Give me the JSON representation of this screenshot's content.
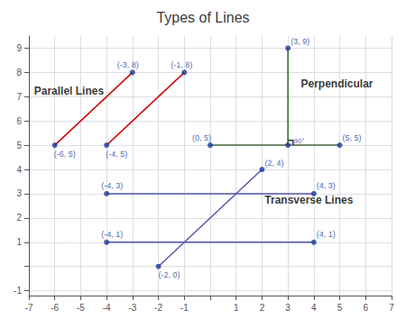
{
  "chart_data": {
    "type": "line",
    "title": "Types of Lines",
    "xlim": [
      -7,
      7
    ],
    "ylim": [
      -1.2,
      9.5
    ],
    "xticks": [
      -7,
      -6,
      -5,
      -4,
      -3,
      -2,
      -1,
      {
        "value": 0,
        "label": null
      },
      1,
      2,
      3,
      4,
      5,
      6,
      7
    ],
    "yticks": [
      -1,
      {
        "value": 0,
        "label": null
      },
      1,
      2,
      3,
      4,
      5,
      6,
      7,
      8,
      9
    ],
    "grid": true,
    "data_labels": true,
    "series": [
      {
        "type": "line",
        "color": "#cc0000",
        "x": [
          -6,
          -3
        ],
        "values": [
          5,
          8
        ]
      },
      {
        "type": "line",
        "color": "#cc0000",
        "x": [
          -4,
          -1
        ],
        "values": [
          5,
          8
        ]
      },
      {
        "type": "line",
        "color": "#2d6a2d",
        "x": [
          3,
          3
        ],
        "values": [
          5,
          9
        ]
      },
      {
        "type": "line",
        "color": "#4a6741",
        "x": [
          0,
          5
        ],
        "values": [
          5,
          5
        ]
      },
      {
        "type": "line",
        "color": "#5555aa",
        "x": [
          -2,
          2
        ],
        "values": [
          0,
          4
        ]
      },
      {
        "type": "line",
        "color": "#5555aa",
        "x": [
          -4,
          4
        ],
        "values": [
          3,
          3
        ]
      },
      {
        "type": "line",
        "color": "#5555aa",
        "x": [
          -4,
          4
        ],
        "values": [
          1,
          1
        ]
      },
      {
        "type": "line",
        "color": "#333333",
        "x": [
          3,
          3.2,
          3.2
        ],
        "values": [
          5.2,
          5.2,
          5
        ]
      },
      {
        "type": "scatter",
        "marker": "circle",
        "color": "#1a3a99",
        "x": [
          -6,
          -3,
          -4,
          -1,
          3,
          0,
          5,
          3,
          -2,
          2,
          -4,
          4,
          -4,
          4
        ],
        "values": [
          5,
          8,
          5,
          8,
          9,
          5,
          5,
          5,
          0,
          4,
          3,
          3,
          1,
          1
        ],
        "value_labels": [
          "(-6, 5)",
          "(-3, 8)",
          "(-4, 5)",
          "(-1, 8)",
          "(3, 9)",
          "(0, 5)",
          "(5, 5)",
          null,
          "(-2, 0)",
          "(2, 4)",
          "(-4, 3)",
          "(4, 3)",
          "(-4, 1)",
          "(4, 1)"
        ]
      }
    ],
    "annotations": [
      {
        "text": "Parallel Lines",
        "x": -6.8,
        "y": 7.0,
        "color": "#000000"
      },
      {
        "text": "Perpendicular",
        "x": 3.5,
        "y": 7.3,
        "color": "#000000"
      },
      {
        "text": "Transverse Lines",
        "x": 2.1,
        "y": 2.5,
        "color": "#000000"
      },
      {
        "text": "90°",
        "x": 3.22,
        "y": 5.04,
        "color": "#1a3a99"
      }
    ]
  }
}
